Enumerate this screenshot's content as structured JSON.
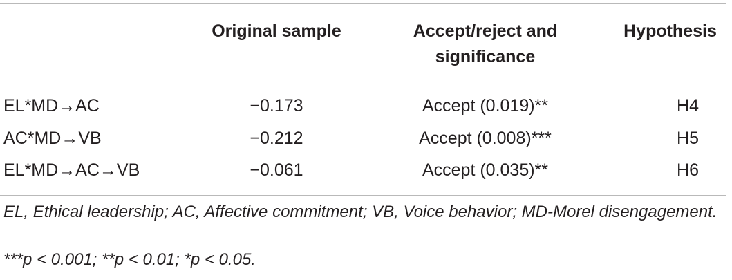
{
  "table": {
    "headers": {
      "original_sample": "Original sample",
      "accept_reject": "Accept/reject and significance",
      "hypothesis": "Hypothesis"
    },
    "rows": [
      {
        "path": "EL*MD→AC",
        "value": "−0.173",
        "result": "Accept (0.019)**",
        "hypothesis": "H4"
      },
      {
        "path": "AC*MD→VB",
        "value": "−0.212",
        "result": "Accept (0.008)***",
        "hypothesis": "H5"
      },
      {
        "path": "EL*MD→AC→VB",
        "value": "−0.061",
        "result": "Accept (0.035)**",
        "hypothesis": "H6"
      }
    ]
  },
  "footnotes": {
    "abbreviations": "EL, Ethical leadership; AC, Affective commitment; VB, Voice behavior; MD-Morel disengagement.",
    "significance": "***p < 0.001; **p < 0.01; *p < 0.05."
  }
}
